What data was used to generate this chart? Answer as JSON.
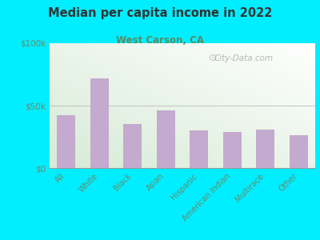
{
  "title": "Median per capita income in 2022",
  "subtitle": "West Carson, CA",
  "categories": [
    "All",
    "White",
    "Black",
    "Asian",
    "Hispanic",
    "American Indian",
    "Multirace",
    "Other"
  ],
  "values": [
    42000,
    72000,
    35000,
    46000,
    30000,
    29000,
    31000,
    26000
  ],
  "bar_color": "#c4aace",
  "background_outer": "#00eeff",
  "title_color": "#333333",
  "subtitle_color": "#5a8a60",
  "axis_label_color": "#6a8a6a",
  "tick_color": "#6a8a6a",
  "ylim": [
    0,
    100000
  ],
  "yticks": [
    0,
    50000,
    100000
  ],
  "ytick_labels": [
    "$0",
    "$50k",
    "$100k"
  ],
  "watermark": "City-Data.com",
  "figsize": [
    4.0,
    3.0
  ],
  "dpi": 100
}
